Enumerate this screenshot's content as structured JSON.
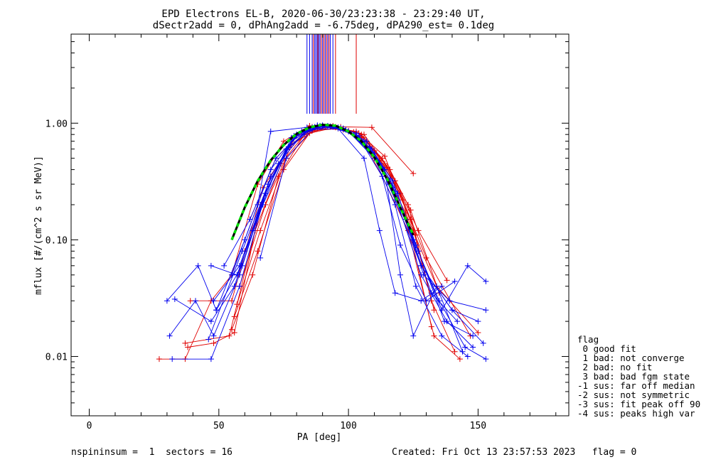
{
  "title_line1": "EPD Electrons EL-B, 2020-06-30/23:23:38 - 23:29:40 UT,",
  "title_line2": "dSectr2add = 0, dPhAng2add = -6.75deg, dPA290_est=   0.1deg",
  "footer_left": "nspininsum =  1  sectors = 16",
  "footer_right": "Created: Fri Oct 13 23:57:53 2023   flag = 0",
  "legend": {
    "title": "flag",
    "items": [
      " 0 good fit",
      " 1 bad: not converge",
      " 2 bad: no fit",
      " 3 bad: bad fgm state",
      "-1 sus: far off median",
      "-2 sus: not symmetric",
      "-3 sus: fit peak off 90",
      "-4 sus: peaks high var"
    ]
  },
  "colors": {
    "red": "#e00000",
    "blue": "#0000ee",
    "green": "#00dd00",
    "black": "#000000"
  },
  "chart_data": {
    "type": "line",
    "xlabel": "PA [deg]",
    "ylabel": "mflux [#/(cm^2 s sr MeV)]",
    "xlim": [
      -7,
      185
    ],
    "ylim": [
      0.0031,
      5.8
    ],
    "yscale": "log",
    "x_ticks": [
      0,
      50,
      100,
      150
    ],
    "y_ticks": [
      0.01,
      0.1,
      1.0
    ],
    "y_tick_labels": [
      "0.01",
      "0.10",
      "1.00"
    ],
    "peak_markers": {
      "blue_x": [
        84,
        85,
        86,
        87,
        87.5,
        88,
        88.5,
        89,
        90,
        91,
        92,
        93,
        94
      ],
      "red_x": [
        86.5,
        88.2,
        89.5,
        90.5,
        91.5,
        92.5,
        95,
        103
      ]
    },
    "fit_curve": {
      "x": [
        55,
        60,
        65,
        70,
        75,
        80,
        85,
        90,
        95,
        100,
        105,
        110,
        115,
        120,
        125
      ],
      "y": [
        0.1,
        0.19,
        0.32,
        0.48,
        0.65,
        0.81,
        0.92,
        0.97,
        0.95,
        0.85,
        0.7,
        0.51,
        0.33,
        0.19,
        0.11
      ]
    },
    "series": [
      {
        "color": "red",
        "x": [
          27,
          37,
          47,
          55,
          65,
          75,
          85,
          95,
          105,
          113,
          123,
          133,
          143
        ],
        "y": [
          0.0095,
          0.0095,
          0.03,
          0.05,
          0.3,
          0.7,
          0.95,
          0.93,
          0.75,
          0.35,
          0.12,
          0.015,
          0.0095
        ]
      },
      {
        "color": "red",
        "x": [
          38,
          48,
          56,
          66,
          76,
          86,
          96,
          106,
          114,
          124,
          132,
          141
        ],
        "y": [
          0.012,
          0.013,
          0.016,
          0.2,
          0.6,
          0.93,
          0.92,
          0.8,
          0.45,
          0.15,
          0.03,
          0.011
        ]
      },
      {
        "color": "red",
        "x": [
          39,
          55,
          67,
          77,
          87,
          97,
          109,
          125
        ],
        "y": [
          0.03,
          0.03,
          0.28,
          0.62,
          0.92,
          0.93,
          0.92,
          0.37
        ]
      },
      {
        "color": "red",
        "x": [
          37,
          54,
          64,
          74,
          84,
          94,
          104,
          114,
          126
        ],
        "y": [
          0.013,
          0.015,
          0.12,
          0.45,
          0.85,
          0.95,
          0.82,
          0.52,
          0.11
        ]
      },
      {
        "color": "red",
        "x": [
          55,
          63,
          73,
          83,
          93,
          103,
          113,
          121,
          132
        ],
        "y": [
          0.017,
          0.05,
          0.35,
          0.8,
          0.93,
          0.85,
          0.5,
          0.22,
          0.018
        ]
      },
      {
        "color": "red",
        "x": [
          56,
          65,
          75,
          85,
          95,
          105,
          115,
          123,
          133
        ],
        "y": [
          0.022,
          0.08,
          0.4,
          0.82,
          0.92,
          0.8,
          0.42,
          0.2,
          0.025
        ]
      },
      {
        "color": "red",
        "x": [
          57,
          66,
          76,
          86,
          96,
          106,
          116,
          124,
          135
        ],
        "y": [
          0.028,
          0.12,
          0.5,
          0.86,
          0.9,
          0.75,
          0.4,
          0.18,
          0.035
        ]
      },
      {
        "color": "red",
        "x": [
          58,
          68,
          78,
          88,
          98,
          108,
          118,
          127,
          138
        ],
        "y": [
          0.04,
          0.2,
          0.65,
          0.9,
          0.88,
          0.66,
          0.32,
          0.12,
          0.045
        ]
      },
      {
        "color": "red",
        "x": [
          60,
          70,
          80,
          90,
          100,
          110,
          120,
          130,
          147
        ],
        "y": [
          0.08,
          0.35,
          0.78,
          0.94,
          0.86,
          0.58,
          0.25,
          0.07,
          0.015
        ]
      },
      {
        "color": "red",
        "x": [
          62,
          72,
          82,
          92,
          102,
          112,
          122,
          134,
          150
        ],
        "y": [
          0.15,
          0.5,
          0.85,
          0.95,
          0.84,
          0.48,
          0.17,
          0.04,
          0.016
        ]
      },
      {
        "color": "blue",
        "x": [
          32,
          47,
          58,
          68,
          78,
          88,
          98,
          108,
          116,
          125,
          135,
          145,
          153
        ],
        "y": [
          0.0095,
          0.0095,
          0.04,
          0.25,
          0.75,
          0.96,
          0.9,
          0.6,
          0.3,
          0.1,
          0.03,
          0.012,
          0.0095
        ]
      },
      {
        "color": "blue",
        "x": [
          31,
          41,
          48,
          58,
          70,
          80,
          90,
          100,
          110,
          118,
          128,
          140,
          152
        ],
        "y": [
          0.015,
          0.03,
          0.015,
          0.05,
          0.35,
          0.8,
          0.95,
          0.85,
          0.55,
          0.22,
          0.06,
          0.025,
          0.013
        ]
      },
      {
        "color": "blue",
        "x": [
          30,
          42,
          49,
          59,
          69,
          79,
          89,
          99,
          109,
          119,
          129,
          139,
          153
        ],
        "y": [
          0.03,
          0.06,
          0.025,
          0.06,
          0.3,
          0.78,
          0.94,
          0.88,
          0.6,
          0.25,
          0.05,
          0.03,
          0.025
        ]
      },
      {
        "color": "blue",
        "x": [
          33,
          47,
          56,
          66,
          76,
          86,
          96,
          106,
          116,
          126,
          136,
          146,
          153
        ],
        "y": [
          0.031,
          0.02,
          0.04,
          0.2,
          0.6,
          0.92,
          0.92,
          0.7,
          0.33,
          0.09,
          0.025,
          0.06,
          0.044
        ]
      },
      {
        "color": "blue",
        "x": [
          47,
          57,
          67,
          77,
          87,
          97,
          107,
          117,
          127,
          137,
          148
        ],
        "y": [
          0.06,
          0.05,
          0.2,
          0.62,
          0.93,
          0.91,
          0.7,
          0.32,
          0.08,
          0.02,
          0.015
        ]
      },
      {
        "color": "blue",
        "x": [
          48,
          58,
          68,
          78,
          88,
          98,
          108,
          118,
          128,
          140,
          150
        ],
        "y": [
          0.03,
          0.06,
          0.25,
          0.7,
          0.95,
          0.9,
          0.62,
          0.26,
          0.06,
          0.025,
          0.02
        ]
      },
      {
        "color": "blue",
        "x": [
          46,
          59,
          69,
          79,
          89,
          99,
          109,
          117,
          128,
          138,
          148
        ],
        "y": [
          0.014,
          0.08,
          0.3,
          0.75,
          0.95,
          0.88,
          0.55,
          0.28,
          0.05,
          0.02,
          0.012
        ]
      },
      {
        "color": "blue",
        "x": [
          49,
          60,
          70,
          80,
          90,
          100,
          110,
          118,
          126,
          136,
          146
        ],
        "y": [
          0.025,
          0.1,
          0.4,
          0.8,
          0.96,
          0.85,
          0.5,
          0.2,
          0.04,
          0.015,
          0.01
        ]
      },
      {
        "color": "blue",
        "x": [
          52,
          62,
          72,
          82,
          92,
          102,
          112,
          122,
          132,
          142
        ],
        "y": [
          0.06,
          0.15,
          0.5,
          0.85,
          0.95,
          0.8,
          0.45,
          0.15,
          0.035,
          0.02
        ]
      },
      {
        "color": "blue",
        "x": [
          55,
          65,
          70,
          84,
          94,
          104,
          114,
          120,
          125,
          134,
          144
        ],
        "y": [
          0.05,
          0.2,
          0.85,
          0.92,
          0.93,
          0.78,
          0.4,
          0.05,
          0.015,
          0.04,
          0.011
        ]
      },
      {
        "color": "blue",
        "x": [
          66,
          76,
          86,
          96,
          106,
          112,
          118,
          128,
          136
        ],
        "y": [
          0.07,
          0.5,
          0.88,
          0.9,
          0.5,
          0.12,
          0.035,
          0.03,
          0.04
        ]
      },
      {
        "color": "blue",
        "x": [
          63,
          73,
          83,
          93,
          103,
          113,
          120,
          130,
          141
        ],
        "y": [
          0.12,
          0.45,
          0.84,
          0.94,
          0.82,
          0.35,
          0.09,
          0.03,
          0.044
        ]
      }
    ],
    "legend_position": "bottom-right outside"
  }
}
